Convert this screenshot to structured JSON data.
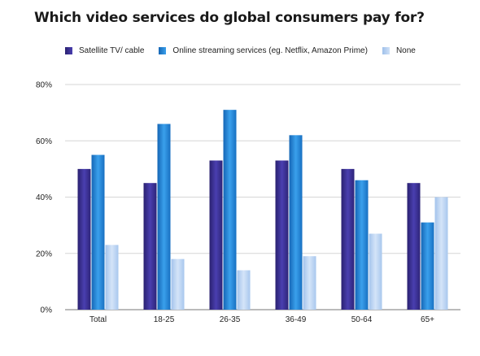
{
  "title": "Which video services do global consumers pay for?",
  "chart_data": {
    "type": "bar",
    "title": "Which video services do global consumers pay for?",
    "xlabel": "",
    "ylabel": "",
    "categories": [
      "Total",
      "18-25",
      "26-35",
      "36-49",
      "50-64",
      "65+"
    ],
    "series": [
      {
        "name": "Satellite TV/ cable",
        "color": "#3a2f8c",
        "values": [
          50,
          45,
          53,
          53,
          50,
          45
        ]
      },
      {
        "name": "Online streaming services (eg. Netflix, Amazon Prime)",
        "color": "#1f7fd1",
        "values": [
          55,
          66,
          71,
          62,
          46,
          31
        ]
      },
      {
        "name": "None",
        "color": "#b4cff0",
        "values": [
          23,
          18,
          14,
          19,
          27,
          40
        ]
      }
    ],
    "ylim": [
      0,
      80
    ],
    "yticks": [
      "0%",
      "20%",
      "40%",
      "60%",
      "80%"
    ],
    "grid": true,
    "legend_position": "top"
  }
}
